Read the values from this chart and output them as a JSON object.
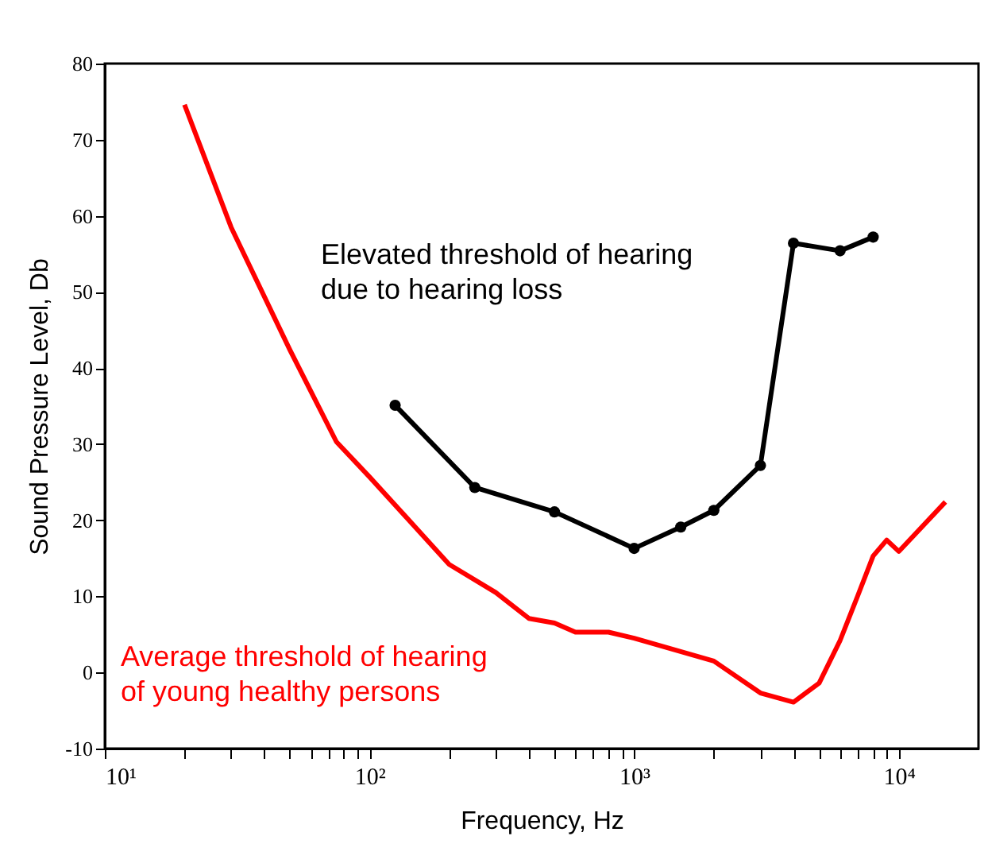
{
  "chart_data": {
    "type": "line",
    "xlabel": "Frequency, Hz",
    "ylabel": "Sound Pressure Level, Db",
    "log": "x",
    "grid": false,
    "xlim": [
      10,
      20000
    ],
    "ylim": [
      -10,
      80
    ],
    "xticks": [
      {
        "value": 10,
        "label": "10¹"
      },
      {
        "value": 20,
        "label": null
      },
      {
        "value": 30,
        "label": null
      },
      {
        "value": 40,
        "label": null
      },
      {
        "value": 50,
        "label": null
      },
      {
        "value": 60,
        "label": null
      },
      {
        "value": 70,
        "label": null
      },
      {
        "value": 80,
        "label": null
      },
      {
        "value": 90,
        "label": null
      },
      {
        "value": 100,
        "label": "10²"
      },
      {
        "value": 200,
        "label": null
      },
      {
        "value": 300,
        "label": null
      },
      {
        "value": 400,
        "label": null
      },
      {
        "value": 500,
        "label": null
      },
      {
        "value": 600,
        "label": null
      },
      {
        "value": 700,
        "label": null
      },
      {
        "value": 800,
        "label": null
      },
      {
        "value": 900,
        "label": null
      },
      {
        "value": 1000,
        "label": "10³"
      },
      {
        "value": 2000,
        "label": null
      },
      {
        "value": 3000,
        "label": null
      },
      {
        "value": 4000,
        "label": null
      },
      {
        "value": 5000,
        "label": null
      },
      {
        "value": 6000,
        "label": null
      },
      {
        "value": 7000,
        "label": null
      },
      {
        "value": 8000,
        "label": null
      },
      {
        "value": 9000,
        "label": null
      },
      {
        "value": 10000,
        "label": "10⁴"
      }
    ],
    "yticks": [
      -10,
      0,
      10,
      20,
      30,
      40,
      50,
      60,
      70,
      80
    ],
    "series": [
      {
        "name": "Average threshold of hearing\nof young healthy persons",
        "color": "#ff0000",
        "marker": "none",
        "x": [
          20,
          30,
          50,
          75,
          100,
          200,
          300,
          400,
          500,
          600,
          800,
          1000,
          2000,
          3000,
          4000,
          5000,
          6000,
          7000,
          8000,
          9000,
          10000,
          15000
        ],
        "values": [
          74.6,
          58.5,
          42.4,
          30.3,
          25.7,
          14.2,
          10.5,
          7.1,
          6.5,
          5.3,
          5.3,
          4.5,
          1.5,
          -2.7,
          -3.9,
          -1.4,
          4.2,
          10.1,
          15.3,
          17.4,
          15.9,
          22.4
        ]
      },
      {
        "name": "Elevated threshold of hearing\ndue to hearing loss",
        "color": "#000000",
        "marker": "circle",
        "x": [
          125,
          250,
          500,
          1000,
          1500,
          2000,
          3000,
          4000,
          6000,
          8000
        ],
        "values": [
          35.1,
          24.3,
          21.1,
          16.3,
          19.1,
          21.3,
          27.2,
          56.4,
          55.4,
          57.2
        ]
      }
    ]
  }
}
